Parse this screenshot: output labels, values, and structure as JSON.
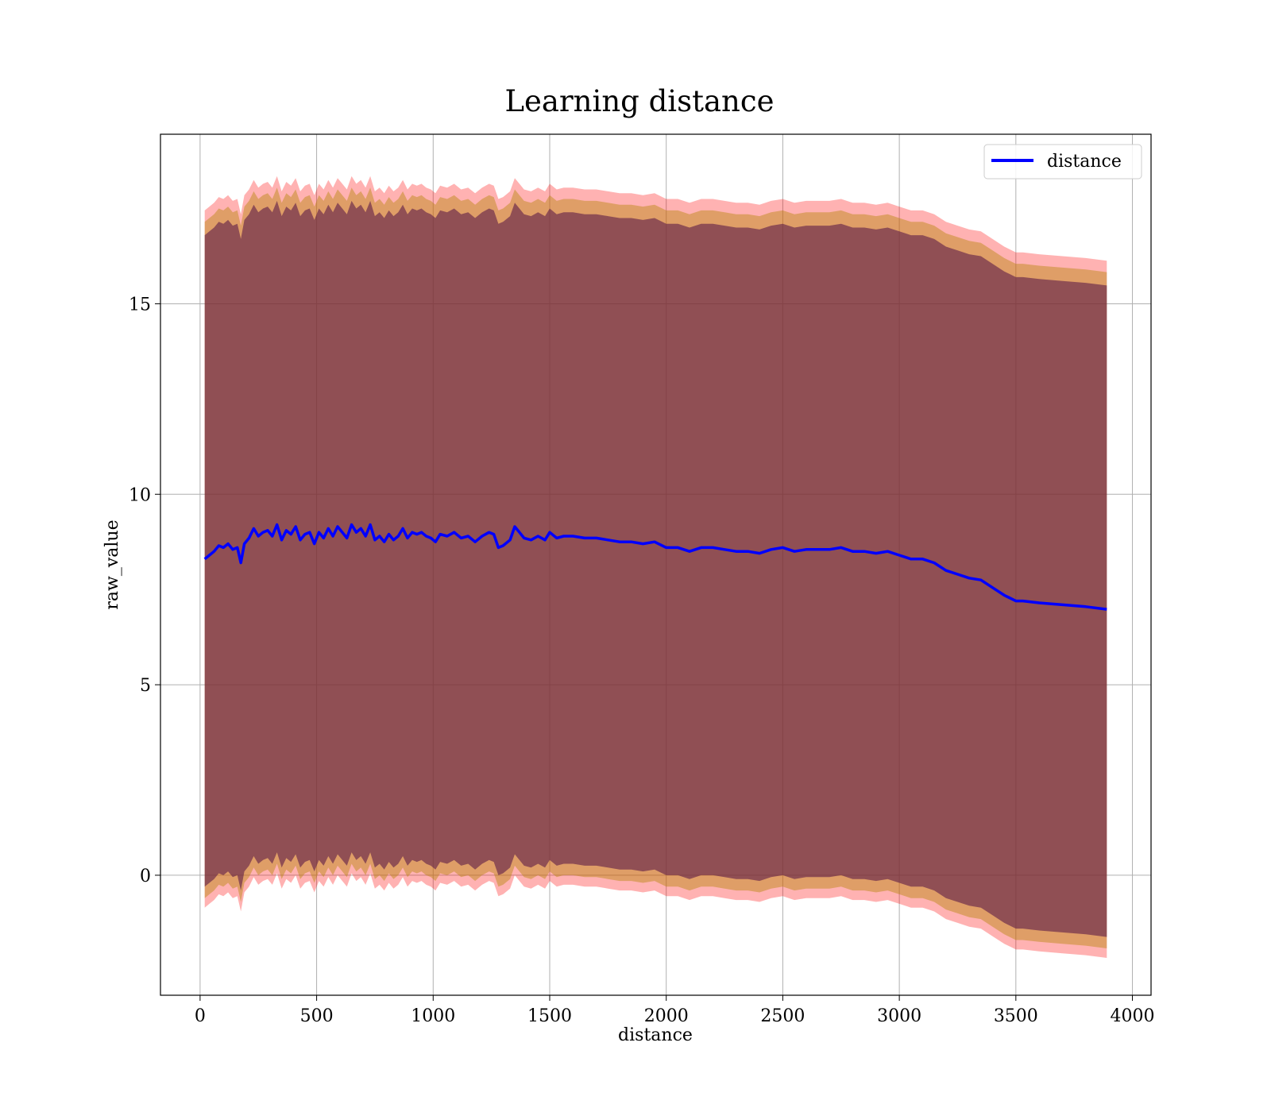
{
  "chart_data": {
    "type": "line",
    "title": "Learning distance",
    "xlabel": "distance",
    "ylabel": "raw_value",
    "xlim": [
      -170,
      4080
    ],
    "ylim": [
      -3.15,
      19.45
    ],
    "xticks": [
      0,
      500,
      1000,
      1500,
      2000,
      2500,
      3000,
      3500,
      4000
    ],
    "yticks": [
      0,
      5,
      10,
      15
    ],
    "grid": true,
    "legend": {
      "position": "top-right",
      "entries": [
        "distance"
      ]
    },
    "colors": {
      "line": "#0000ff",
      "band_outer": "#ff0000",
      "band_middle": "#b8860b",
      "band_inner": "#5b1a47"
    },
    "series": [
      {
        "name": "distance",
        "x": [
          20,
          40,
          60,
          80,
          100,
          120,
          140,
          160,
          175,
          190,
          210,
          230,
          250,
          270,
          290,
          310,
          330,
          350,
          370,
          390,
          410,
          430,
          450,
          470,
          490,
          510,
          530,
          550,
          570,
          590,
          610,
          630,
          650,
          670,
          690,
          710,
          730,
          750,
          770,
          790,
          810,
          830,
          850,
          870,
          890,
          910,
          930,
          950,
          970,
          990,
          1010,
          1030,
          1060,
          1090,
          1120,
          1150,
          1180,
          1210,
          1240,
          1260,
          1280,
          1300,
          1330,
          1350,
          1370,
          1390,
          1420,
          1450,
          1480,
          1500,
          1530,
          1560,
          1600,
          1650,
          1700,
          1750,
          1800,
          1850,
          1900,
          1950,
          2000,
          2050,
          2100,
          2150,
          2200,
          2250,
          2300,
          2350,
          2400,
          2450,
          2500,
          2550,
          2600,
          2650,
          2700,
          2750,
          2800,
          2850,
          2900,
          2950,
          3000,
          3050,
          3100,
          3150,
          3200,
          3250,
          3300,
          3350,
          3400,
          3450,
          3500,
          3530,
          3600,
          3700,
          3800,
          3890
        ],
        "y": [
          8.3,
          8.4,
          8.5,
          8.65,
          8.6,
          8.7,
          8.55,
          8.6,
          8.2,
          8.7,
          8.85,
          9.1,
          8.9,
          9.0,
          9.05,
          8.9,
          9.2,
          8.8,
          9.05,
          8.95,
          9.15,
          8.8,
          8.95,
          9.0,
          8.7,
          9.0,
          8.85,
          9.1,
          8.9,
          9.15,
          9.0,
          8.85,
          9.2,
          9.0,
          9.1,
          8.9,
          9.2,
          8.8,
          8.9,
          8.75,
          8.95,
          8.8,
          8.9,
          9.1,
          8.85,
          9.0,
          8.95,
          9.0,
          8.9,
          8.85,
          8.75,
          8.95,
          8.9,
          9.0,
          8.85,
          8.9,
          8.75,
          8.9,
          9.0,
          8.95,
          8.6,
          8.65,
          8.8,
          9.15,
          9.0,
          8.85,
          8.8,
          8.9,
          8.8,
          9.0,
          8.85,
          8.9,
          8.9,
          8.85,
          8.85,
          8.8,
          8.75,
          8.75,
          8.7,
          8.75,
          8.6,
          8.6,
          8.5,
          8.6,
          8.6,
          8.55,
          8.5,
          8.5,
          8.45,
          8.55,
          8.6,
          8.5,
          8.55,
          8.55,
          8.55,
          8.6,
          8.5,
          8.5,
          8.45,
          8.5,
          8.4,
          8.3,
          8.3,
          8.2,
          8.0,
          7.9,
          7.8,
          7.75,
          7.55,
          7.35,
          7.2,
          7.2,
          7.15,
          7.1,
          7.05,
          6.98
        ]
      }
    ],
    "band": {
      "upper_outer_offset": 9.15,
      "upper_middle_offset": 8.85,
      "upper_inner_offset": 8.5,
      "lower_inner_offset": 8.6,
      "lower_middle_offset": 8.9,
      "lower_outer_offset": 9.15
    }
  }
}
